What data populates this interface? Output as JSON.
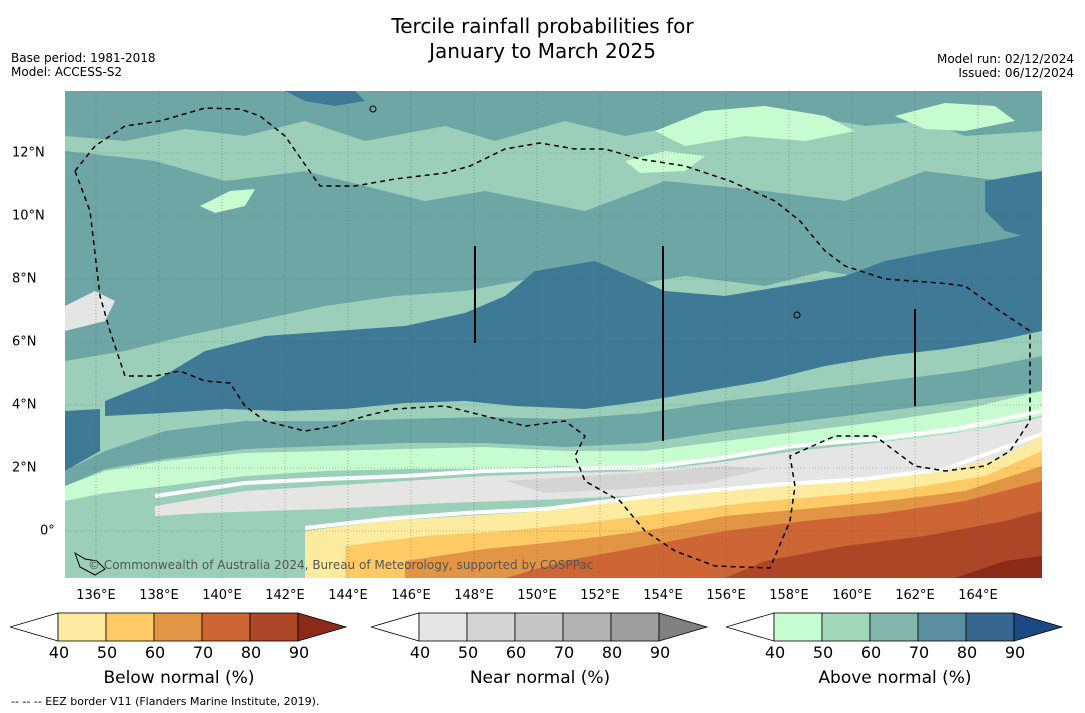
{
  "title": {
    "line1": "Tercile rainfall probabilities for",
    "line2": "January to March 2025"
  },
  "meta_left": {
    "base_period": "Base period: 1981-2018",
    "model": "Model: ACCESS-S2"
  },
  "meta_right": {
    "model_run": "Model run: 02/12/2024",
    "issued": "Issued: 06/12/2024"
  },
  "map": {
    "x_ticks": [
      "136°E",
      "138°E",
      "140°E",
      "142°E",
      "144°E",
      "146°E",
      "148°E",
      "150°E",
      "152°E",
      "154°E",
      "156°E",
      "158°E",
      "160°E",
      "162°E",
      "164°E"
    ],
    "y_ticks": [
      "12°N",
      "10°N",
      "8°N",
      "6°N",
      "4°N",
      "2°N",
      "0°"
    ],
    "copyright": "© Commonwealth of Australia 2024, Bureau of Meteorology, supported by COSPPac"
  },
  "colorbars": [
    {
      "label": "Below normal (%)",
      "ticks": [
        "40",
        "50",
        "60",
        "70",
        "80",
        "90"
      ],
      "colors": [
        "#ffffff",
        "#fdeca0",
        "#fdca66",
        "#e29545",
        "#cd6535",
        "#ad4626",
        "#8b2a18"
      ]
    },
    {
      "label": "Near normal (%)",
      "ticks": [
        "40",
        "50",
        "60",
        "70",
        "80",
        "90"
      ],
      "colors": [
        "#ffffff",
        "#e5e5e5",
        "#d4d4d4",
        "#c6c6c6",
        "#b2b2b2",
        "#9e9e9e",
        "#808080"
      ]
    },
    {
      "label": "Above normal (%)",
      "ticks": [
        "40",
        "50",
        "60",
        "70",
        "80",
        "90"
      ],
      "colors": [
        "#ffffff",
        "#c7fcd0",
        "#a2d8ba",
        "#82b6aa",
        "#5b8fa0",
        "#376690",
        "#1a4a86"
      ]
    }
  ],
  "footnote": "--  --  -- EEZ border V11 (Flanders Marine Institute, 2019)."
}
